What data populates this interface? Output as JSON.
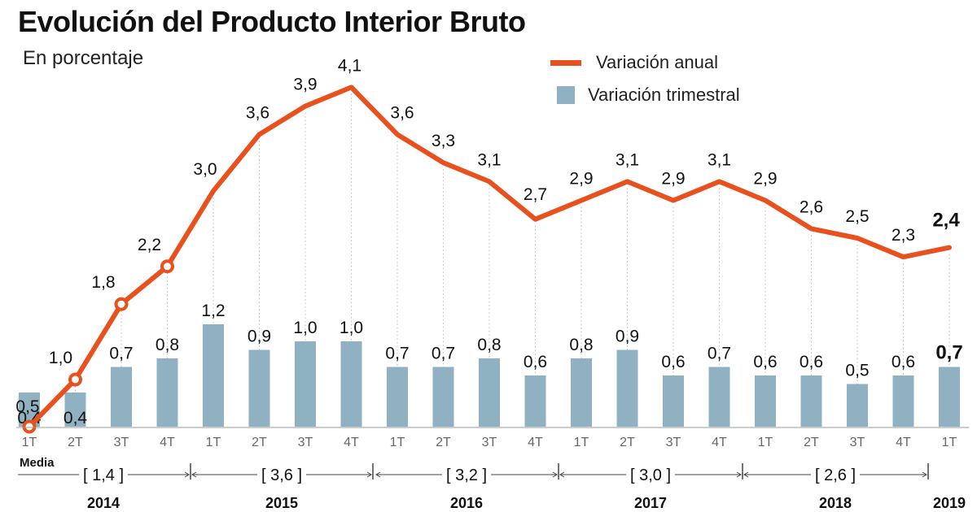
{
  "header": {
    "title": "Evolución del Producto Interior Bruto",
    "subtitle": "En porcentaje"
  },
  "legend": {
    "annual_label": "Variación anual",
    "quarterly_label": "Variación trimestral",
    "annual_color": "#e8501e",
    "quarterly_color": "#8fb1c2"
  },
  "averages": {
    "label": "Media",
    "values": [
      "[ 1,4 ]",
      "[ 3,6 ]",
      "[ 3,2 ]",
      "[ 3,0 ]",
      "[ 2,6 ]"
    ]
  },
  "chart_data": {
    "type": "bar",
    "categories": [
      "1T",
      "2T",
      "3T",
      "4T",
      "1T",
      "2T",
      "3T",
      "4T",
      "1T",
      "2T",
      "3T",
      "4T",
      "1T",
      "2T",
      "3T",
      "4T",
      "1T",
      "2T",
      "3T",
      "4T",
      "1T"
    ],
    "years": [
      "2014",
      "2015",
      "2016",
      "2017",
      "2018",
      "2019"
    ],
    "series": [
      {
        "name": "Variación anual",
        "type": "line",
        "values": [
          0.5,
          1.0,
          1.8,
          2.2,
          3.0,
          3.6,
          3.9,
          4.1,
          3.6,
          3.3,
          3.1,
          2.7,
          2.9,
          3.1,
          2.9,
          3.1,
          2.9,
          2.6,
          2.5,
          2.3,
          2.4
        ],
        "labels": [
          "0,5",
          "1,0",
          "1,8",
          "2,2",
          "3,0",
          "3,6",
          "3,9",
          "4,1",
          "3,6",
          "3,3",
          "3,1",
          "2,7",
          "2,9",
          "3,1",
          "2,9",
          "3,1",
          "2,9",
          "2,6",
          "2,5",
          "2,3",
          "2,4"
        ]
      },
      {
        "name": "Variación trimestral",
        "type": "bar",
        "values": [
          0.4,
          0.4,
          0.7,
          0.8,
          1.2,
          0.9,
          1.0,
          1.0,
          0.7,
          0.7,
          0.8,
          0.6,
          0.8,
          0.9,
          0.6,
          0.7,
          0.6,
          0.6,
          0.5,
          0.6,
          0.7
        ],
        "labels": [
          "0,4",
          "0,4",
          "0,7",
          "0,8",
          "1,2",
          "0,9",
          "1,0",
          "1,0",
          "0,7",
          "0,7",
          "0,8",
          "0,6",
          "0,8",
          "0,9",
          "0,6",
          "0,7",
          "0,6",
          "0,6",
          "0,5",
          "0,6",
          "0,7"
        ]
      }
    ],
    "xlabel": "",
    "ylabel": ""
  }
}
